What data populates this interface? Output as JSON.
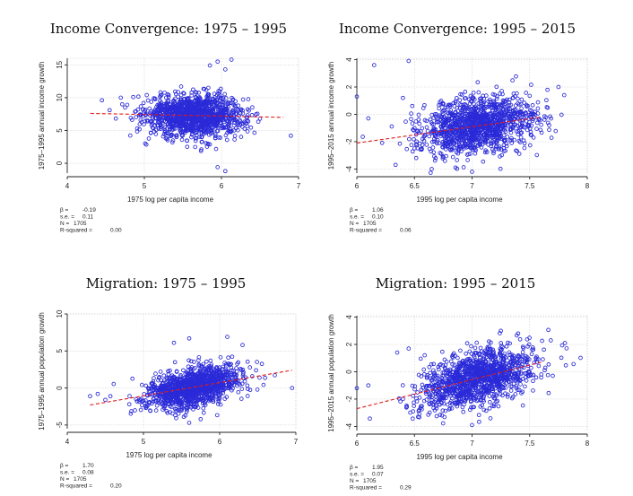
{
  "chart_data": [
    {
      "type": "scatter",
      "title": "Income Convergence: 1975 – 1995",
      "xlabel": "1975 log per capita income",
      "ylabel": "1975–1995 annual income growth",
      "xlim": [
        4,
        7
      ],
      "ylim": [
        -1.5,
        16
      ],
      "xticks": [
        "4",
        "5",
        "6",
        "7"
      ],
      "yticks": [
        "0",
        "5",
        "10",
        "15"
      ],
      "grid": true,
      "fit_line": {
        "x": [
          4.3,
          6.8
        ],
        "y": [
          7.6,
          7.0
        ]
      },
      "point_cloud": {
        "x_center": 5.65,
        "x_spread": 0.32,
        "y_spread": 1.6,
        "count": 1705
      },
      "outliers": [
        {
          "x": 5.95,
          "y": 15.5
        },
        {
          "x": 6.13,
          "y": 15.8
        },
        {
          "x": 5.85,
          "y": 14.9
        },
        {
          "x": 6.05,
          "y": 14.3
        },
        {
          "x": 4.75,
          "y": 8.5
        },
        {
          "x": 4.45,
          "y": 9.6
        },
        {
          "x": 4.55,
          "y": 8.1
        },
        {
          "x": 6.9,
          "y": 4.2
        },
        {
          "x": 5.95,
          "y": -0.6
        },
        {
          "x": 6.05,
          "y": -1.2
        },
        {
          "x": 6.5,
          "y": 6.8
        }
      ],
      "stats": {
        "beta_label": "β =",
        "beta": "-0.19",
        "se_label": "s.e. =",
        "se": "0.11",
        "n_label": "N =",
        "n": "1705",
        "r2_label": "R-squared =",
        "r2": "0.00"
      }
    },
    {
      "type": "scatter",
      "title": "Income Convergence: 1995 – 2015",
      "xlabel": "1995 log per capita income",
      "ylabel": "1995–2015 annual income growth",
      "xlim": [
        6,
        8
      ],
      "ylim": [
        -4.3,
        4.1
      ],
      "xticks": [
        "6",
        "6.5",
        "7",
        "7.5",
        "8"
      ],
      "yticks": [
        "-4",
        "-2",
        "0",
        "2",
        "4"
      ],
      "grid": true,
      "fit_line": {
        "x": [
          6.0,
          7.6
        ],
        "y": [
          -2.1,
          -0.2
        ]
      },
      "point_cloud": {
        "x_center": 7.05,
        "x_spread": 0.25,
        "y_spread": 1.0,
        "count": 1705
      },
      "outliers": [
        {
          "x": 6.45,
          "y": 3.9
        },
        {
          "x": 6.15,
          "y": 3.6
        },
        {
          "x": 6.0,
          "y": 1.3
        },
        {
          "x": 6.1,
          "y": -0.3
        },
        {
          "x": 6.4,
          "y": 1.2
        },
        {
          "x": 7.75,
          "y": 2.0
        },
        {
          "x": 7.8,
          "y": 1.4
        },
        {
          "x": 7.0,
          "y": -4.2
        }
      ],
      "stats": {
        "beta_label": "β =",
        "beta": "1.06",
        "se_label": "s.e. =",
        "se": "0.10",
        "n_label": "N =",
        "n": "1705",
        "r2_label": "R-squared =",
        "r2": "0.06"
      }
    },
    {
      "type": "scatter",
      "title": "Migration: 1975 – 1995",
      "xlabel": "1975 log per capita income",
      "ylabel": "1975–1995 annual population growth",
      "xlim": [
        4,
        7
      ],
      "ylim": [
        -5.5,
        10
      ],
      "xticks": [
        "4",
        "5",
        "6",
        "7"
      ],
      "yticks": [
        "-5",
        "0",
        "5",
        "10"
      ],
      "grid": true,
      "fit_line": {
        "x": [
          4.3,
          6.95
        ],
        "y": [
          -2.3,
          2.4
        ]
      },
      "point_cloud": {
        "x_center": 5.65,
        "x_spread": 0.32,
        "y_spread": 1.3,
        "count": 1705
      },
      "outliers": [
        {
          "x": 5.4,
          "y": 6.1
        },
        {
          "x": 5.6,
          "y": 6.7
        },
        {
          "x": 6.1,
          "y": 6.9
        },
        {
          "x": 6.3,
          "y": 5.8
        },
        {
          "x": 4.3,
          "y": -1.1
        },
        {
          "x": 4.4,
          "y": -0.8
        },
        {
          "x": 4.5,
          "y": -1.6
        },
        {
          "x": 6.95,
          "y": 0.0
        },
        {
          "x": 5.6,
          "y": -4.7
        },
        {
          "x": 5.75,
          "y": -4.2
        }
      ],
      "stats": {
        "beta_label": "β =",
        "beta": "1.70",
        "se_label": "s.e. =",
        "se": "0.08",
        "n_label": "N =",
        "n": "1705",
        "r2_label": "R-squared =",
        "r2": "0.20"
      }
    },
    {
      "type": "scatter",
      "title": "Migration: 1995 – 2015",
      "xlabel": "1995 log per capita income",
      "ylabel": "1995–2015 annual population growth",
      "xlim": [
        6,
        8
      ],
      "ylim": [
        -4.3,
        4.1
      ],
      "xticks": [
        "6",
        "6.5",
        "7",
        "7.5",
        "8"
      ],
      "yticks": [
        "-4",
        "-2",
        "0",
        "2",
        "4"
      ],
      "grid": true,
      "fit_line": {
        "x": [
          6.0,
          7.6
        ],
        "y": [
          -2.7,
          0.7
        ]
      },
      "point_cloud": {
        "x_center": 7.05,
        "x_spread": 0.25,
        "y_spread": 1.0,
        "count": 1705
      },
      "outliers": [
        {
          "x": 6.45,
          "y": 1.7
        },
        {
          "x": 6.35,
          "y": 1.4
        },
        {
          "x": 7.4,
          "y": 2.8
        },
        {
          "x": 7.25,
          "y": 3.0
        },
        {
          "x": 6.0,
          "y": -1.2
        },
        {
          "x": 6.1,
          "y": -1.0
        },
        {
          "x": 7.0,
          "y": -3.9
        },
        {
          "x": 7.7,
          "y": -0.3
        }
      ],
      "stats": {
        "beta_label": "β =",
        "beta": "1.95",
        "se_label": "s.e. =",
        "se": "0.07",
        "n_label": "N =",
        "n": "1705",
        "r2_label": "R-squared =",
        "r2": "0.29"
      }
    }
  ]
}
